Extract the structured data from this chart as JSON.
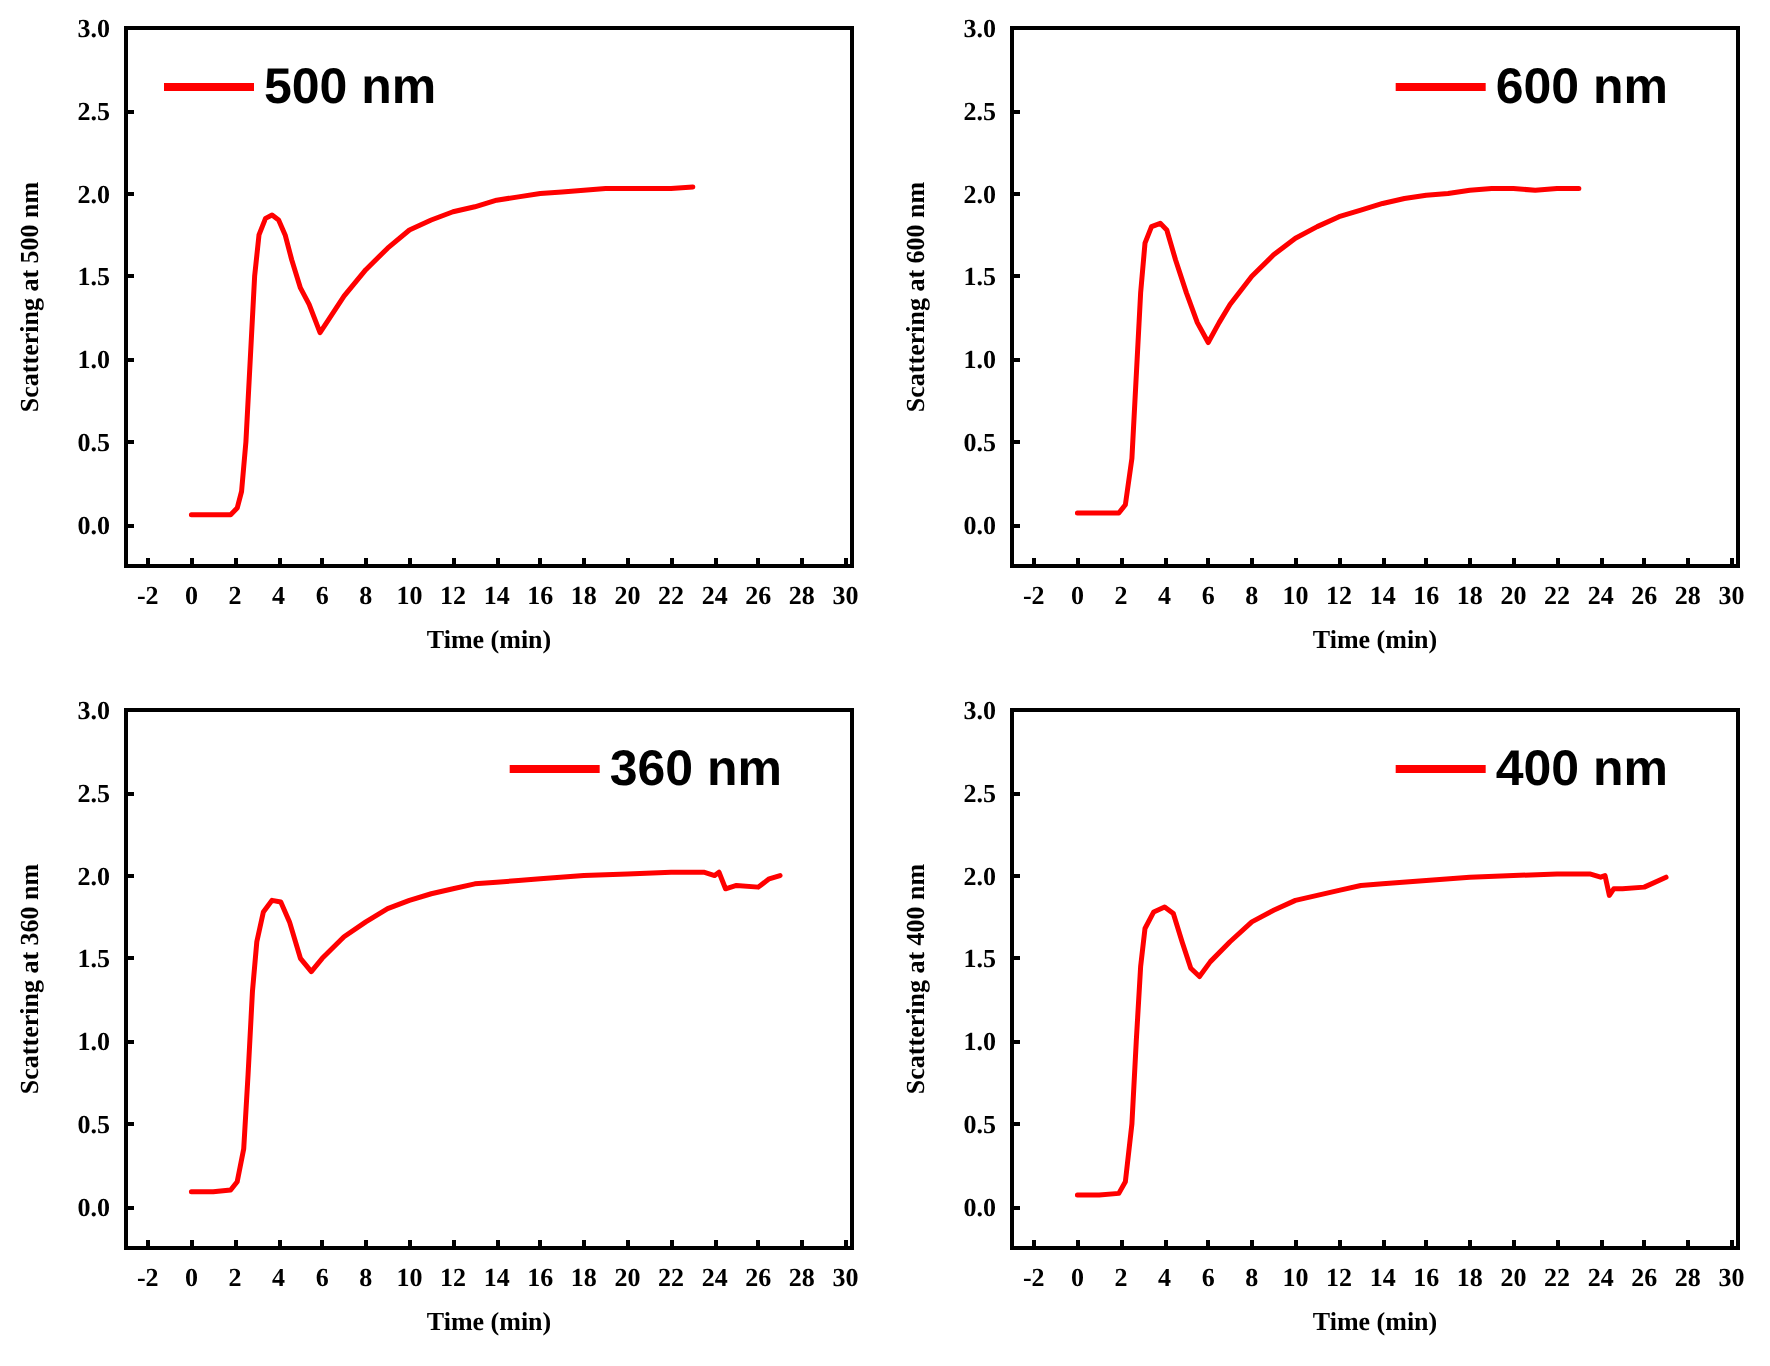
{
  "chart_data": [
    {
      "type": "line",
      "xlabel": "Time (min)",
      "ylabel": "Scattering at 500 nm",
      "legend": "top left",
      "grid": false,
      "marker": "none",
      "line_style": "solid",
      "xlim": [
        -3,
        30.3
      ],
      "ylim": [
        -0.25,
        3
      ],
      "xticks": [
        -2,
        0,
        2,
        4,
        6,
        8,
        10,
        12,
        14,
        16,
        18,
        20,
        22,
        24,
        26,
        28,
        30
      ],
      "yticks": [
        {
          "value": 0,
          "label": "0.0"
        },
        {
          "value": 0.5,
          "label": "0.5"
        },
        {
          "value": 1,
          "label": "1.0"
        },
        {
          "value": 1.5,
          "label": "1.5"
        },
        {
          "value": 2,
          "label": "2.0"
        },
        {
          "value": 2.5,
          "label": "2.5"
        },
        {
          "value": 3,
          "label": "3.0"
        }
      ],
      "series": [
        {
          "name": "500 nm",
          "color": "#ff0000",
          "x": [
            0,
            1,
            1.8,
            2.1,
            2.3,
            2.5,
            2.7,
            2.9,
            3.1,
            3.4,
            3.7,
            4.0,
            4.3,
            4.6,
            5.0,
            5.4,
            5.9,
            6.3,
            7,
            8,
            9,
            10,
            11,
            12,
            13,
            14,
            15,
            16,
            17,
            18,
            19,
            20,
            21,
            22,
            23
          ],
          "values": [
            0.06,
            0.06,
            0.06,
            0.1,
            0.2,
            0.5,
            1.0,
            1.5,
            1.75,
            1.85,
            1.87,
            1.84,
            1.75,
            1.6,
            1.43,
            1.33,
            1.16,
            1.24,
            1.38,
            1.54,
            1.67,
            1.78,
            1.84,
            1.89,
            1.92,
            1.96,
            1.98,
            2.0,
            2.01,
            2.02,
            2.03,
            2.03,
            2.03,
            2.03,
            2.04
          ]
        }
      ]
    },
    {
      "type": "line",
      "xlabel": "Time (min)",
      "ylabel": "Scattering at 600 nm",
      "legend": "top right",
      "grid": false,
      "marker": "none",
      "line_style": "solid",
      "xlim": [
        -3,
        30.3
      ],
      "ylim": [
        -0.25,
        3
      ],
      "xticks": [
        -2,
        0,
        2,
        4,
        6,
        8,
        10,
        12,
        14,
        16,
        18,
        20,
        22,
        24,
        26,
        28,
        30
      ],
      "yticks": [
        {
          "value": 0,
          "label": "0.0"
        },
        {
          "value": 0.5,
          "label": "0.5"
        },
        {
          "value": 1,
          "label": "1.0"
        },
        {
          "value": 1.5,
          "label": "1.5"
        },
        {
          "value": 2,
          "label": "2.0"
        },
        {
          "value": 2.5,
          "label": "2.5"
        },
        {
          "value": 3,
          "label": "3.0"
        }
      ],
      "series": [
        {
          "name": "600 nm",
          "color": "#ff0000",
          "x": [
            0,
            1,
            1.9,
            2.2,
            2.5,
            2.7,
            2.9,
            3.1,
            3.4,
            3.8,
            4.1,
            4.5,
            5,
            5.5,
            6.0,
            6.5,
            7,
            8,
            9,
            10,
            11,
            12,
            13,
            14,
            15,
            16,
            17,
            18,
            19,
            20,
            21,
            22,
            23
          ],
          "values": [
            0.07,
            0.07,
            0.07,
            0.12,
            0.4,
            0.9,
            1.4,
            1.7,
            1.8,
            1.82,
            1.78,
            1.6,
            1.4,
            1.22,
            1.1,
            1.22,
            1.33,
            1.5,
            1.63,
            1.73,
            1.8,
            1.86,
            1.9,
            1.94,
            1.97,
            1.99,
            2.0,
            2.02,
            2.03,
            2.03,
            2.02,
            2.03,
            2.03
          ]
        }
      ]
    },
    {
      "type": "line",
      "xlabel": "Time (min)",
      "ylabel": "Scattering at 360 nm",
      "legend": "top right",
      "grid": false,
      "marker": "none",
      "line_style": "solid",
      "xlim": [
        -3,
        30.3
      ],
      "ylim": [
        -0.25,
        3
      ],
      "xticks": [
        -2,
        0,
        2,
        4,
        6,
        8,
        10,
        12,
        14,
        16,
        18,
        20,
        22,
        24,
        26,
        28,
        30
      ],
      "yticks": [
        {
          "value": 0,
          "label": "0.0"
        },
        {
          "value": 0.5,
          "label": "0.5"
        },
        {
          "value": 1,
          "label": "1.0"
        },
        {
          "value": 1.5,
          "label": "1.5"
        },
        {
          "value": 2,
          "label": "2.0"
        },
        {
          "value": 2.5,
          "label": "2.5"
        },
        {
          "value": 3,
          "label": "3.0"
        }
      ],
      "series": [
        {
          "name": "360 nm",
          "color": "#ff0000",
          "x": [
            0,
            1,
            1.8,
            2.1,
            2.4,
            2.6,
            2.8,
            3,
            3.3,
            3.7,
            4.1,
            4.5,
            5,
            5.5,
            6,
            7,
            8,
            9,
            10,
            11,
            12,
            13,
            14,
            15,
            16,
            18,
            20,
            22,
            23.5,
            24,
            24.2,
            24.5,
            25,
            26,
            26.5,
            27
          ],
          "values": [
            0.09,
            0.09,
            0.1,
            0.15,
            0.35,
            0.8,
            1.3,
            1.6,
            1.78,
            1.85,
            1.84,
            1.72,
            1.5,
            1.42,
            1.5,
            1.63,
            1.72,
            1.8,
            1.85,
            1.89,
            1.92,
            1.95,
            1.96,
            1.97,
            1.98,
            2.0,
            2.01,
            2.02,
            2.02,
            2.0,
            2.02,
            1.92,
            1.94,
            1.93,
            1.98,
            2.0
          ]
        }
      ]
    },
    {
      "type": "line",
      "xlabel": "Time (min)",
      "ylabel": "Scattering at 400 nm",
      "legend": "top right",
      "grid": false,
      "marker": "none",
      "line_style": "solid",
      "xlim": [
        -3,
        30.3
      ],
      "ylim": [
        -0.25,
        3
      ],
      "xticks": [
        -2,
        0,
        2,
        4,
        6,
        8,
        10,
        12,
        14,
        16,
        18,
        20,
        22,
        24,
        26,
        28,
        30
      ],
      "yticks": [
        {
          "value": 0,
          "label": "0.0"
        },
        {
          "value": 0.5,
          "label": "0.5"
        },
        {
          "value": 1,
          "label": "1.0"
        },
        {
          "value": 1.5,
          "label": "1.5"
        },
        {
          "value": 2,
          "label": "2.0"
        },
        {
          "value": 2.5,
          "label": "2.5"
        },
        {
          "value": 3,
          "label": "3.0"
        }
      ],
      "series": [
        {
          "name": "400 nm",
          "color": "#ff0000",
          "x": [
            0,
            1,
            1.9,
            2.2,
            2.5,
            2.7,
            2.9,
            3.1,
            3.5,
            4,
            4.4,
            4.8,
            5.2,
            5.6,
            6.1,
            7,
            8,
            9,
            10,
            11,
            12,
            13,
            14,
            16,
            18,
            20,
            22,
            23.5,
            24,
            24.2,
            24.4,
            24.6,
            25,
            26,
            27
          ],
          "values": [
            0.07,
            0.07,
            0.08,
            0.15,
            0.5,
            1.0,
            1.45,
            1.68,
            1.78,
            1.81,
            1.77,
            1.6,
            1.44,
            1.39,
            1.48,
            1.6,
            1.72,
            1.79,
            1.85,
            1.88,
            1.91,
            1.94,
            1.95,
            1.97,
            1.99,
            2.0,
            2.01,
            2.01,
            1.99,
            2.0,
            1.88,
            1.92,
            1.92,
            1.93,
            1.99
          ]
        }
      ]
    }
  ]
}
